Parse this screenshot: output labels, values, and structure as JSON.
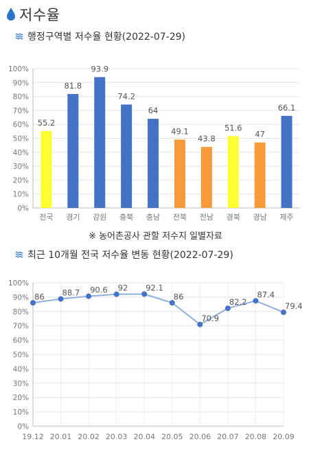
{
  "page": {
    "title": "저수율"
  },
  "bar_section": {
    "title": "행정구역별 저수율 현황(2022-07-29)"
  },
  "note": "※ 농어촌공사 관할 저수지 일별자료",
  "line_section": {
    "title": "최근 10개월 전국 저수율 변동 현황(2022-07-29)"
  },
  "icons": {
    "title_icon": "water-drop-icon",
    "section_icon": "water-wave-icon"
  },
  "colors": {
    "national": "#ffff33",
    "above": "#4472c4",
    "below": "#f79b3a",
    "line": "#8fb0de",
    "marker": "#4472c4"
  },
  "chart_data": [
    {
      "type": "bar",
      "categories": [
        "전국",
        "경기",
        "강원",
        "충북",
        "충남",
        "전북",
        "전남",
        "경북",
        "경남",
        "제주"
      ],
      "values": [
        55.2,
        81.8,
        93.9,
        74.2,
        64,
        49.1,
        43.8,
        51.6,
        47,
        66.1
      ],
      "value_labels": [
        "55.2",
        "81.8",
        "93.9",
        "74.2",
        "64",
        "49.1",
        "43.8",
        "51.6",
        "47",
        "66.1"
      ],
      "bar_colors": [
        "#ffff33",
        "#4472c4",
        "#4472c4",
        "#4472c4",
        "#4472c4",
        "#f79b3a",
        "#f79b3a",
        "#ffff33",
        "#f79b3a",
        "#4472c4"
      ],
      "yticks": [
        "0%",
        "10%",
        "20%",
        "30%",
        "40%",
        "50%",
        "60%",
        "70%",
        "80%",
        "90%",
        "100%"
      ],
      "ylim": [
        0,
        100
      ],
      "grid": true
    },
    {
      "type": "line",
      "x": [
        "19.12",
        "20.01",
        "20.02",
        "20.03",
        "20.04",
        "20.05",
        "20.06",
        "20.07",
        "20.08",
        "20.09"
      ],
      "values": [
        86,
        88.7,
        90.6,
        92,
        92.1,
        86,
        70.9,
        82.2,
        87.4,
        79.4
      ],
      "value_labels": [
        "86",
        "88.7",
        "90.6",
        "92",
        "92.1",
        "86",
        "70.9",
        "82.2",
        "87.4",
        "79.4"
      ],
      "yticks": [
        "0%",
        "10%",
        "20%",
        "30%",
        "40%",
        "50%",
        "60%",
        "70%",
        "80%",
        "90%",
        "100%"
      ],
      "ylim": [
        0,
        100
      ],
      "grid": true
    }
  ]
}
